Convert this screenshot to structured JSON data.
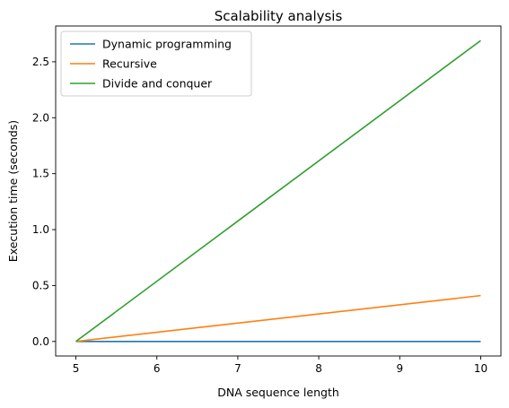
{
  "chart_data": {
    "type": "line",
    "title": "Scalability analysis",
    "xlabel": "DNA sequence length",
    "ylabel": "Execution time (seconds)",
    "xlim": [
      4.75,
      10.25
    ],
    "ylim": [
      -0.13,
      2.82
    ],
    "xticks": [
      5,
      6,
      7,
      8,
      9,
      10
    ],
    "yticks": [
      0.0,
      0.5,
      1.0,
      1.5,
      2.0,
      2.5
    ],
    "xtick_labels": [
      "5",
      "6",
      "7",
      "8",
      "9",
      "10"
    ],
    "ytick_labels": [
      "0.0",
      "0.5",
      "1.0",
      "1.5",
      "2.0",
      "2.5"
    ],
    "grid": false,
    "legend_position": "top-left",
    "x": [
      5,
      10
    ],
    "series": [
      {
        "name": "Dynamic programming",
        "color": "#1f77b4",
        "values": [
          0.0,
          0.0
        ]
      },
      {
        "name": "Recursive",
        "color": "#ff7f0e",
        "values": [
          0.0,
          0.41
        ]
      },
      {
        "name": "Divide and conquer",
        "color": "#2ca02c",
        "values": [
          0.0,
          2.69
        ]
      }
    ]
  }
}
